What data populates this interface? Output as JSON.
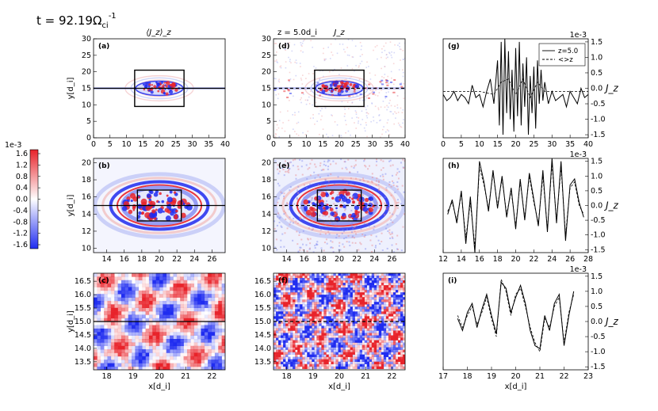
{
  "figure": {
    "time_label_prefix": "t = 92.19",
    "time_unit": "Ω",
    "time_unit_sub": "ci",
    "time_unit_sup": "-1",
    "col1_title": "⟨J_z⟩_z",
    "col2_z_label": "z = 5.0d_i",
    "col2_title": "J_z",
    "colorbar_ticks": [
      "1.6",
      "1.2",
      "0.8",
      "0.4",
      "0.0",
      "-0.4",
      "-0.8",
      "-1.2",
      "-1.6"
    ],
    "colorbar_scale": "1e-3",
    "colors": {
      "positive": "#e8232a",
      "negative": "#1f2cf0",
      "zero": "#ffffff",
      "line": "#000000"
    }
  },
  "chart_data": [
    {
      "id": "a",
      "type": "heatmap",
      "panel_label": "(a)",
      "xlim": [
        0,
        40
      ],
      "ylim": [
        0,
        30
      ],
      "xticks": [
        "0",
        "5",
        "10",
        "15",
        "20",
        "25",
        "30",
        "35",
        "40"
      ],
      "yticks": [
        "0",
        "5",
        "10",
        "15",
        "20",
        "25",
        "30"
      ],
      "ylabel": "y[d_i]",
      "box": [
        12.5,
        27.5,
        9.5,
        20.5
      ],
      "cut_y": 15,
      "cut_style": "solid"
    },
    {
      "id": "d",
      "type": "heatmap",
      "panel_label": "(d)",
      "xlim": [
        0,
        40
      ],
      "ylim": [
        0,
        30
      ],
      "xticks": [
        "0",
        "5",
        "10",
        "15",
        "20",
        "25",
        "30",
        "35",
        "40"
      ],
      "yticks": [
        "0",
        "5",
        "10",
        "15",
        "20",
        "25",
        "30"
      ],
      "box": [
        12.5,
        27.5,
        9.5,
        20.5
      ],
      "cut_y": 15,
      "cut_style": "dashed"
    },
    {
      "id": "b",
      "type": "heatmap",
      "panel_label": "(b)",
      "xlim": [
        12.5,
        27.5
      ],
      "ylim": [
        9.5,
        20.5
      ],
      "xticks": [
        "14",
        "16",
        "18",
        "20",
        "22",
        "24",
        "26"
      ],
      "yticks": [
        "10",
        "12",
        "14",
        "16",
        "18",
        "20"
      ],
      "ylabel": "y[d_i]",
      "box": [
        17.5,
        22.5,
        13.2,
        16.8
      ],
      "cut_y": 15,
      "cut_style": "solid"
    },
    {
      "id": "e",
      "type": "heatmap",
      "panel_label": "(e)",
      "xlim": [
        12.5,
        27.5
      ],
      "ylim": [
        9.5,
        20.5
      ],
      "xticks": [
        "14",
        "16",
        "18",
        "20",
        "22",
        "24",
        "26"
      ],
      "yticks": [
        "10",
        "12",
        "14",
        "16",
        "18",
        "20"
      ],
      "box": [
        17.5,
        22.5,
        13.2,
        16.8
      ],
      "cut_y": 15,
      "cut_style": "dashed"
    },
    {
      "id": "c",
      "type": "heatmap",
      "panel_label": "(c)",
      "xlim": [
        17.5,
        22.5
      ],
      "ylim": [
        13.2,
        16.8
      ],
      "xticks": [
        "18",
        "19",
        "20",
        "21",
        "22"
      ],
      "yticks": [
        "13.5",
        "14.0",
        "14.5",
        "15.0",
        "15.5",
        "16.0",
        "16.5"
      ],
      "xlabel": "x[d_i]",
      "ylabel": "y[d_i]",
      "cut_y": 15,
      "cut_style": "solid"
    },
    {
      "id": "f",
      "type": "heatmap",
      "panel_label": "(f)",
      "xlim": [
        17.5,
        22.5
      ],
      "ylim": [
        13.2,
        16.8
      ],
      "xticks": [
        "18",
        "19",
        "20",
        "21",
        "22"
      ],
      "yticks": [
        "13.5",
        "14.0",
        "14.5",
        "15.0",
        "15.5",
        "16.0",
        "16.5"
      ],
      "xlabel": "x[d_i]",
      "cut_y": 15,
      "cut_style": "dashed"
    },
    {
      "id": "g",
      "type": "line",
      "panel_label": "(g)",
      "xlim": [
        0,
        40
      ],
      "ylim": [
        -1.6,
        1.6
      ],
      "xticks": [
        "0",
        "5",
        "10",
        "15",
        "20",
        "25",
        "30",
        "35",
        "40"
      ],
      "yticks": [
        "1.5",
        "1.0",
        "0.5",
        "0.0",
        "-0.5",
        "-1.0",
        "-1.5"
      ],
      "scale": "1e-3",
      "ylabel": "J_z",
      "legend": [
        {
          "name": "z=5.0",
          "style": "solid"
        },
        {
          "name": "<>z",
          "style": "dashed"
        }
      ],
      "series": [
        {
          "name": "z=5.0",
          "style": "solid",
          "x": [
            0,
            1,
            2,
            3,
            4,
            5,
            6,
            7,
            8,
            9,
            10,
            11,
            12,
            13,
            14,
            15,
            15.5,
            16,
            16.5,
            17,
            17.5,
            18,
            18.5,
            19,
            19.5,
            20,
            20.5,
            21,
            21.5,
            22,
            22.5,
            23,
            23.5,
            24,
            24.5,
            25,
            25.5,
            26,
            26.5,
            27,
            27.5,
            28,
            29,
            30,
            31,
            32,
            33,
            34,
            35,
            36,
            37,
            38,
            39,
            40
          ],
          "y": [
            -0.2,
            -0.4,
            -0.3,
            -0.1,
            -0.4,
            -0.2,
            -0.3,
            -0.5,
            0.1,
            -0.3,
            -0.2,
            -0.6,
            -0.1,
            0.3,
            -0.5,
            0.9,
            -1.2,
            1.5,
            -1.5,
            1.6,
            -0.8,
            1.2,
            -1.0,
            0.6,
            -1.4,
            1.3,
            -0.9,
            1.5,
            -1.2,
            0.8,
            -0.6,
            1.0,
            -1.5,
            0.4,
            -0.8,
            0.7,
            -1.3,
            0.9,
            -0.5,
            0.6,
            -0.4,
            0.2,
            -0.5,
            -0.1,
            -0.4,
            -0.3,
            -0.2,
            -0.6,
            -0.1,
            -0.3,
            -0.5,
            0.0,
            -0.3,
            -0.2
          ]
        },
        {
          "name": "<>z",
          "style": "dashed",
          "x": [
            0,
            5,
            10,
            14,
            16,
            18,
            20,
            22,
            24,
            26,
            28,
            30,
            35,
            40
          ],
          "y": [
            -0.1,
            -0.1,
            -0.1,
            -0.2,
            0.2,
            0.3,
            -0.2,
            0.3,
            -0.3,
            0.2,
            -0.1,
            -0.1,
            -0.1,
            -0.1
          ]
        }
      ]
    },
    {
      "id": "h",
      "type": "line",
      "panel_label": "(h)",
      "xlim": [
        12,
        28
      ],
      "ylim": [
        -1.6,
        1.6
      ],
      "xticks": [
        "12",
        "14",
        "16",
        "18",
        "20",
        "22",
        "24",
        "26",
        "28"
      ],
      "yticks": [
        "1.5",
        "1.0",
        "0.5",
        "0.0",
        "-0.5",
        "-1.0",
        "-1.5"
      ],
      "scale": "1e-3",
      "ylabel": "J_z",
      "series": [
        {
          "name": "z=5.0",
          "style": "solid",
          "x": [
            12.5,
            13,
            13.5,
            14,
            14.5,
            15,
            15.5,
            16,
            16.5,
            17,
            17.5,
            18,
            18.5,
            19,
            19.5,
            20,
            20.5,
            21,
            21.5,
            22,
            22.5,
            23,
            23.5,
            24,
            24.5,
            25,
            25.5,
            26,
            26.5,
            27,
            27.5
          ],
          "y": [
            -0.3,
            0.2,
            -0.6,
            0.5,
            -1.3,
            0.3,
            -1.6,
            1.5,
            0.8,
            -0.2,
            1.2,
            -0.1,
            1.0,
            -0.4,
            0.6,
            -0.8,
            0.9,
            -0.5,
            1.1,
            0.2,
            -0.7,
            1.2,
            -0.9,
            1.6,
            -0.6,
            1.5,
            -1.2,
            0.7,
            0.9,
            0.1,
            -0.4
          ]
        },
        {
          "name": "<>z",
          "style": "dashed",
          "x": [
            12.5,
            13,
            13.5,
            14,
            14.5,
            15,
            15.5,
            16,
            16.5,
            17,
            17.5,
            18,
            18.5,
            19,
            19.5,
            20,
            20.5,
            21,
            21.5,
            22,
            22.5,
            23,
            23.5,
            24,
            24.5,
            25,
            25.5,
            26,
            26.5,
            27,
            27.5
          ],
          "y": [
            -0.2,
            0.1,
            -0.5,
            0.4,
            -1.1,
            0.1,
            -1.4,
            1.3,
            0.7,
            -0.1,
            1.1,
            0.0,
            0.9,
            -0.3,
            0.5,
            -0.7,
            0.8,
            -0.4,
            1.0,
            0.1,
            -0.6,
            1.0,
            -0.8,
            1.4,
            -0.5,
            1.3,
            -1.0,
            0.6,
            0.8,
            0.0,
            -0.3
          ]
        }
      ]
    },
    {
      "id": "i",
      "type": "line",
      "panel_label": "(i)",
      "xlim": [
        17,
        23
      ],
      "ylim": [
        -1.6,
        1.6
      ],
      "xticks": [
        "17",
        "18",
        "19",
        "20",
        "21",
        "22",
        "23"
      ],
      "yticks": [
        "1.5",
        "1.0",
        "0.5",
        "0.0",
        "-0.5",
        "-1.0",
        "-1.5"
      ],
      "scale": "1e-3",
      "xlabel": "x[d_i]",
      "ylabel": "J_z",
      "series": [
        {
          "name": "z=5.0",
          "style": "solid",
          "x": [
            17.6,
            17.8,
            18.0,
            18.2,
            18.4,
            18.6,
            18.8,
            19.0,
            19.2,
            19.4,
            19.6,
            19.8,
            20.0,
            20.2,
            20.4,
            20.6,
            20.8,
            21.0,
            21.2,
            21.4,
            21.6,
            21.8,
            22.0,
            22.2,
            22.4
          ],
          "y": [
            0.1,
            -0.3,
            0.3,
            0.6,
            -0.2,
            0.4,
            0.9,
            0.2,
            -0.4,
            1.3,
            1.1,
            0.3,
            0.8,
            1.2,
            0.6,
            -0.3,
            -0.8,
            -0.9,
            0.2,
            -0.3,
            0.6,
            0.9,
            -0.8,
            0.2,
            1.0
          ]
        },
        {
          "name": "<>z",
          "style": "dashed",
          "x": [
            17.6,
            17.8,
            18.0,
            18.2,
            18.4,
            18.6,
            18.8,
            19.0,
            19.2,
            19.4,
            19.6,
            19.8,
            20.0,
            20.2,
            20.4,
            20.6,
            20.8,
            21.0,
            21.2,
            21.4,
            21.6,
            21.8,
            22.0,
            22.2,
            22.4
          ],
          "y": [
            0.2,
            -0.2,
            0.2,
            0.5,
            -0.1,
            0.3,
            0.8,
            0.1,
            -0.5,
            1.4,
            1.0,
            0.2,
            0.9,
            1.1,
            0.5,
            -0.2,
            -0.7,
            -1.0,
            0.1,
            -0.2,
            0.5,
            0.8,
            -0.7,
            0.3,
            0.9
          ]
        }
      ]
    }
  ]
}
